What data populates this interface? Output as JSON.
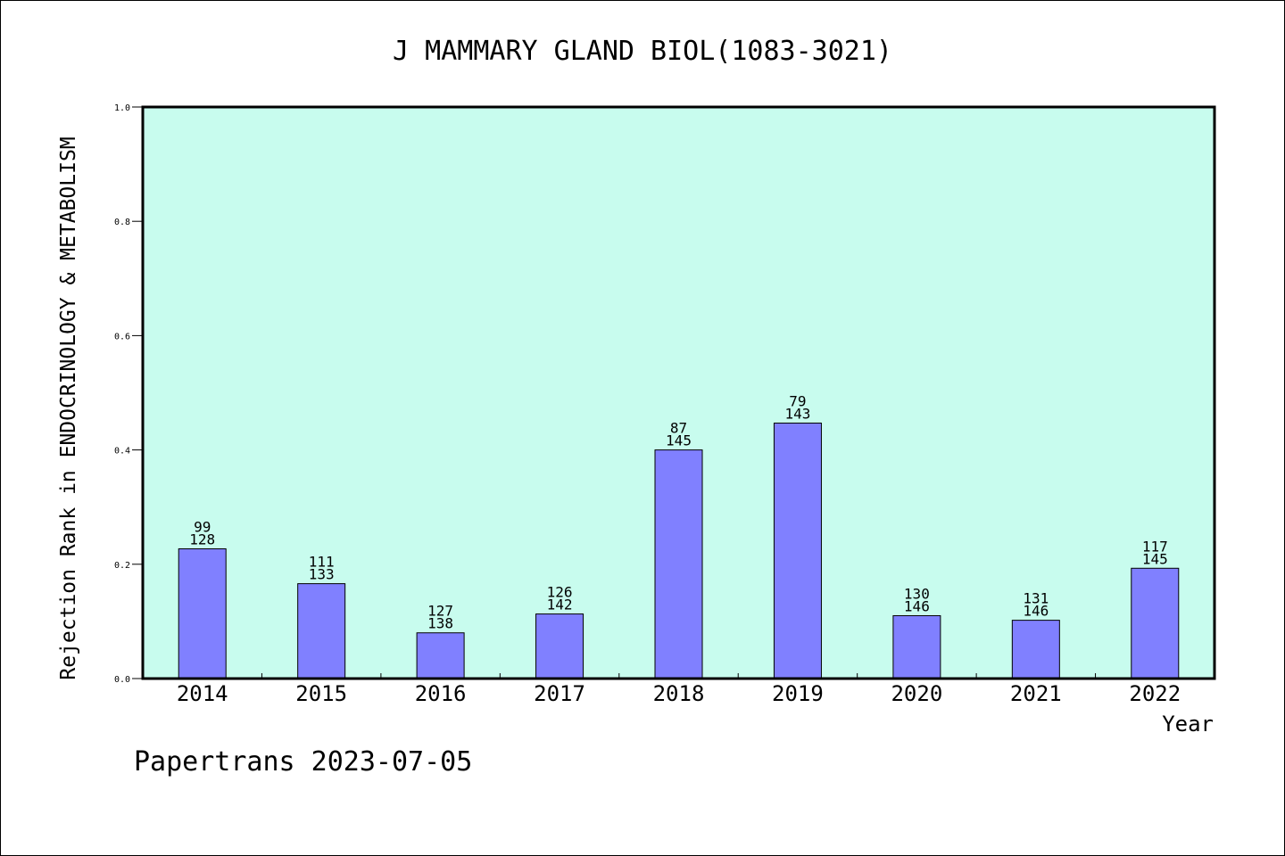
{
  "chart_data": {
    "type": "bar",
    "title": "J MAMMARY GLAND BIOL(1083-3021)",
    "xlabel": "Year",
    "ylabel": "Rejection Rank in ENDOCRINOLOGY & METABOLISM",
    "categories": [
      "2014",
      "2015",
      "2016",
      "2017",
      "2018",
      "2019",
      "2020",
      "2021",
      "2022"
    ],
    "values": [
      0.227,
      0.166,
      0.08,
      0.113,
      0.4,
      0.447,
      0.11,
      0.102,
      0.193
    ],
    "bar_labels_top": [
      "99",
      "111",
      "127",
      "126",
      "87",
      "79",
      "130",
      "131",
      "117"
    ],
    "bar_labels_bottom": [
      "128",
      "133",
      "138",
      "142",
      "145",
      "143",
      "146",
      "146",
      "145"
    ],
    "ylim": [
      0,
      1.0
    ],
    "yticks": [
      "0.0",
      "0.2",
      "0.4",
      "0.6",
      "0.8",
      "1.0"
    ],
    "grid": false,
    "colors": {
      "plot_background": "#c8fcee",
      "bar_fill": "#8080ff",
      "axis": "#000000"
    }
  },
  "footer": {
    "text": "Papertrans 2023-07-05"
  }
}
